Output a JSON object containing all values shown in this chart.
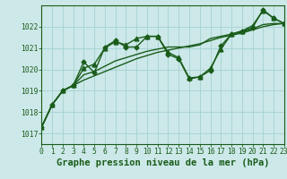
{
  "title": "Graphe pression niveau de la mer (hPa)",
  "background_color": "#cce8e8",
  "grid_color": "#aad4d4",
  "line_color": "#1a5c1a",
  "ylim": [
    1016.5,
    1023.0
  ],
  "xlim": [
    0,
    23
  ],
  "yticks": [
    1017,
    1018,
    1019,
    1020,
    1021,
    1022
  ],
  "xticks": [
    0,
    1,
    2,
    3,
    4,
    5,
    6,
    7,
    8,
    9,
    10,
    11,
    12,
    13,
    14,
    15,
    16,
    17,
    18,
    19,
    20,
    21,
    22,
    23
  ],
  "series": [
    {
      "x": [
        0,
        1,
        2,
        3,
        4,
        5,
        6,
        7,
        8,
        9,
        10,
        11,
        12,
        13,
        14,
        15,
        16,
        17,
        18,
        19,
        20,
        21,
        22,
        23
      ],
      "y": [
        1017.3,
        1018.35,
        1019.0,
        1019.25,
        1020.35,
        1019.85,
        1021.05,
        1021.35,
        1021.05,
        1021.05,
        1021.55,
        1021.55,
        1020.7,
        1020.5,
        1019.55,
        1019.65,
        1019.95,
        1021.1,
        1021.65,
        1021.8,
        1021.95,
        1022.8,
        1022.4,
        1022.15
      ],
      "marker": "D",
      "markersize": 2.5,
      "linewidth": 1.0
    },
    {
      "x": [
        0,
        1,
        2,
        3,
        4,
        5,
        6,
        7,
        8,
        9,
        10,
        11,
        12,
        13,
        14,
        15,
        16,
        17,
        18,
        19,
        20,
        21,
        22,
        23
      ],
      "y": [
        1017.3,
        1018.35,
        1019.0,
        1019.25,
        1019.5,
        1019.7,
        1019.9,
        1020.1,
        1020.3,
        1020.5,
        1020.65,
        1020.8,
        1020.9,
        1021.0,
        1021.1,
        1021.2,
        1021.35,
        1021.5,
        1021.6,
        1021.7,
        1021.85,
        1022.0,
        1022.1,
        1022.15
      ],
      "marker": null,
      "markersize": 0,
      "linewidth": 1.0
    },
    {
      "x": [
        0,
        1,
        2,
        3,
        4,
        5,
        6,
        7,
        8,
        9,
        10,
        11,
        12,
        13,
        14,
        15,
        16,
        17,
        18,
        19,
        20,
        21,
        22,
        23
      ],
      "y": [
        1017.3,
        1018.35,
        1019.0,
        1019.25,
        1019.75,
        1019.9,
        1020.15,
        1020.4,
        1020.55,
        1020.7,
        1020.85,
        1020.95,
        1021.05,
        1021.05,
        1021.05,
        1021.15,
        1021.45,
        1021.55,
        1021.65,
        1021.75,
        1021.9,
        1022.1,
        1022.15,
        1022.15
      ],
      "marker": null,
      "markersize": 0,
      "linewidth": 1.0
    },
    {
      "x": [
        0,
        1,
        2,
        3,
        4,
        5,
        6,
        7,
        8,
        9,
        10,
        11,
        12,
        13,
        14,
        15,
        16,
        17,
        18,
        19,
        20,
        21,
        22,
        23
      ],
      "y": [
        1017.3,
        1018.35,
        1019.0,
        1019.25,
        1020.05,
        1020.25,
        1021.0,
        1021.3,
        1021.15,
        1021.45,
        1021.55,
        1021.55,
        1020.8,
        1020.55,
        1019.6,
        1019.65,
        1020.05,
        1020.95,
        1021.65,
        1021.8,
        1022.05,
        1022.75,
        1022.4,
        1022.15
      ],
      "marker": "^",
      "markersize": 3.5,
      "linewidth": 1.0
    }
  ],
  "tick_fontsize": 5.8,
  "xlabel_fontsize": 7.5,
  "tick_color": "#1a5c1a",
  "label_color": "#1a5c1a",
  "axis_color": "#1a5c1a"
}
